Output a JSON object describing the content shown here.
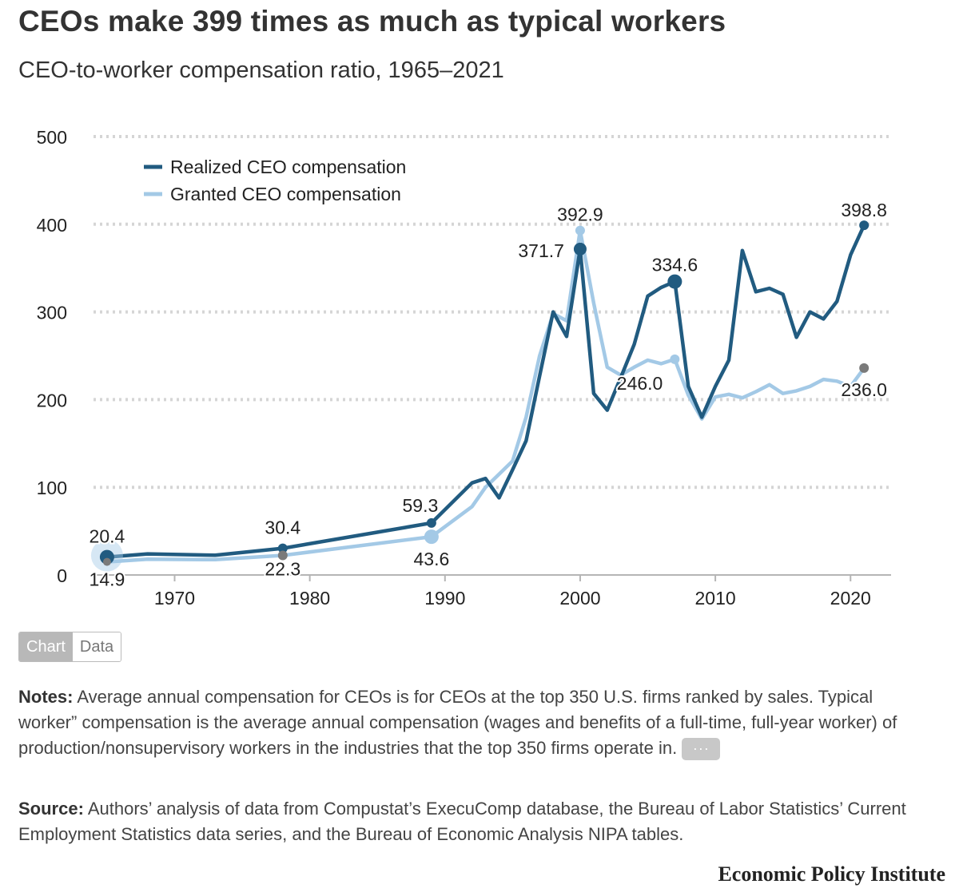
{
  "header": {
    "title": "CEOs make 399 times as much as typical workers",
    "subtitle": "CEO-to-worker compensation ratio, 1965–2021"
  },
  "colors": {
    "realized": "#215b80",
    "granted": "#a3c9e6",
    "marker_gray": "#7a7a7a",
    "grid": "#d5d5d5"
  },
  "chart_data": {
    "type": "line",
    "title": "CEOs make 399 times as much as typical workers",
    "subtitle": "CEO-to-worker compensation ratio, 1965–2021",
    "xlabel": "",
    "ylabel": "",
    "xlim": [
      1964,
      2023
    ],
    "ylim": [
      0,
      500
    ],
    "xticks": [
      1970,
      1980,
      1990,
      2000,
      2010,
      2020
    ],
    "yticks": [
      0,
      100,
      200,
      300,
      400,
      500
    ],
    "grid": true,
    "legend_position": "top-left",
    "series": [
      {
        "name": "Realized CEO compensation",
        "x": [
          1965,
          1968,
          1973,
          1978,
          1989,
          1992,
          1993,
          1994,
          1995,
          1996,
          1997,
          1998,
          1999,
          2000,
          2001,
          2002,
          2003,
          2004,
          2005,
          2006,
          2007,
          2008,
          2009,
          2010,
          2011,
          2012,
          2013,
          2014,
          2015,
          2016,
          2017,
          2018,
          2019,
          2020,
          2021
        ],
        "y": [
          20.4,
          24,
          22.5,
          30.4,
          59.3,
          105,
          110,
          88,
          120,
          153,
          227,
          300,
          272,
          371.7,
          207,
          188,
          225,
          263,
          318,
          328,
          334.6,
          215,
          180,
          215,
          245,
          370,
          323,
          327,
          320,
          271,
          300,
          292,
          312,
          365,
          398.8
        ]
      },
      {
        "name": "Granted CEO compensation",
        "x": [
          1965,
          1968,
          1973,
          1978,
          1989,
          1992,
          1993,
          1994,
          1995,
          1996,
          1997,
          1998,
          1999,
          2000,
          2001,
          2002,
          2003,
          2004,
          2005,
          2006,
          2007,
          2008,
          2009,
          2010,
          2011,
          2012,
          2013,
          2014,
          2015,
          2016,
          2017,
          2018,
          2019,
          2020,
          2021
        ],
        "y": [
          14.9,
          18,
          17.5,
          22.3,
          43.6,
          78,
          100,
          115,
          130,
          180,
          250,
          298,
          290,
          392.9,
          310,
          237,
          228,
          237,
          245,
          241,
          246,
          205,
          178,
          203,
          206,
          202,
          209,
          217,
          207,
          210,
          215,
          223,
          221,
          215,
          236
        ]
      }
    ],
    "annotations": [
      {
        "series": 0,
        "year": 1965,
        "text": "20.4"
      },
      {
        "series": 1,
        "year": 1965,
        "text": "14.9"
      },
      {
        "series": 0,
        "year": 1978,
        "text": "30.4"
      },
      {
        "series": 1,
        "year": 1978,
        "text": "22.3"
      },
      {
        "series": 0,
        "year": 1989,
        "text": "59.3"
      },
      {
        "series": 1,
        "year": 1989,
        "text": "43.6"
      },
      {
        "series": 0,
        "year": 2000,
        "text": "371.7"
      },
      {
        "series": 1,
        "year": 2000,
        "text": "392.9"
      },
      {
        "series": 0,
        "year": 2007,
        "text": "334.6"
      },
      {
        "series": 1,
        "year": 2007,
        "text": "246.0"
      },
      {
        "series": 0,
        "year": 2021,
        "text": "398.8"
      },
      {
        "series": 1,
        "year": 2021,
        "text": "236.0"
      }
    ]
  },
  "toggle": {
    "chart_label": "Chart",
    "data_label": "Data"
  },
  "notes": {
    "label": "Notes:",
    "text": " Average annual compensation for CEOs is for CEOs at the top 350 U.S. firms ranked by sales. Typical worker” compensation is the average annual compensation (wages and benefits of a full-time, full-year worker) of production/nonsupervisory workers in the industries that the top 350 firms operate in. ",
    "more_label": "···"
  },
  "source": {
    "label": "Source:",
    "text": " Authors’ analysis of data from Compustat’s ExecuComp database, the Bureau of Labor Statistics’ Current Employment Statistics data series, and the Bureau of Economic Analysis NIPA tables."
  },
  "brand": "Economic Policy Institute"
}
